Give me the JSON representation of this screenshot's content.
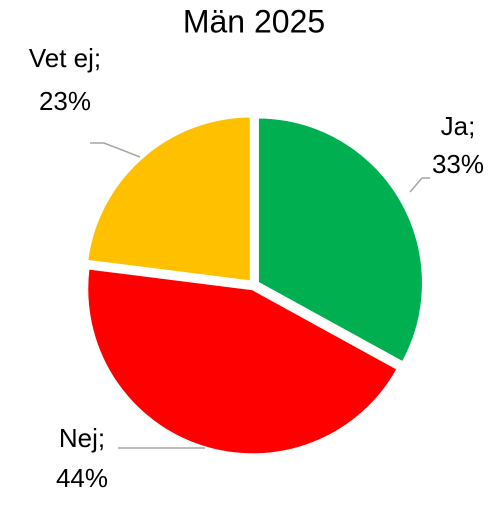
{
  "chart_data": {
    "type": "pie",
    "title": "Män 2025",
    "categories": [
      "Ja;",
      "Nej;",
      "Vet ej;"
    ],
    "values": [
      33,
      44,
      23
    ],
    "value_labels": [
      "33%",
      "44%",
      "23%"
    ],
    "colors": [
      "#00b050",
      "#ff0000",
      "#ffc000"
    ]
  }
}
